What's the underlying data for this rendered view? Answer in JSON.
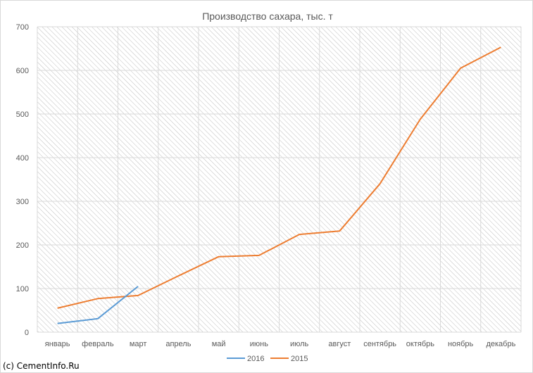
{
  "chart_data": {
    "type": "line",
    "title": "Производство сахара, тыс. т",
    "categories": [
      "январь",
      "февраль",
      "март",
      "апрель",
      "май",
      "июнь",
      "июль",
      "август",
      "сентябрь",
      "октябрь",
      "ноябрь",
      "декабрь"
    ],
    "series": [
      {
        "name": "2016",
        "color": "#5b9bd5",
        "values": [
          20,
          31,
          105,
          null,
          null,
          null,
          null,
          null,
          null,
          null,
          null,
          null
        ]
      },
      {
        "name": "2015",
        "color": "#ed7d31",
        "values": [
          55,
          77,
          84,
          129,
          173,
          176,
          224,
          232,
          340,
          488,
          605,
          653
        ]
      }
    ],
    "ylim": [
      0,
      700
    ],
    "yticks": [
      0,
      100,
      200,
      300,
      400,
      500,
      600,
      700
    ],
    "grid": true,
    "legend_position": "bottom"
  },
  "footer": {
    "copyright": "(c) CementInfo.Ru"
  }
}
